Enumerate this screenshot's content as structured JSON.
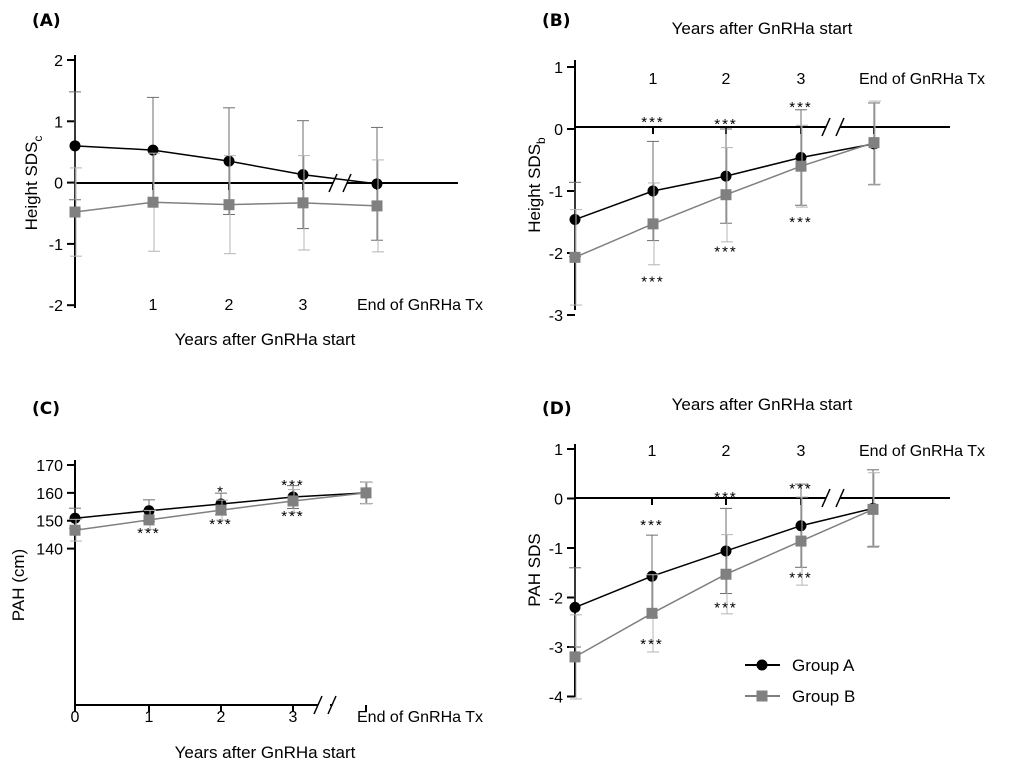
{
  "chart_data": [
    {
      "panel": "(A)",
      "type": "line",
      "ylabel": "Height SDS",
      "ylabel_sub": "c",
      "xlabel": "Years after GnRHa start",
      "xlabel_position": "bottom",
      "ylim": [
        -2,
        2
      ],
      "yticks": [
        -2,
        -1,
        0,
        1,
        2
      ],
      "x_ticks": [
        "1",
        "2",
        "3",
        "End of GnRHa Tx"
      ],
      "axis_break": true,
      "series": [
        {
          "group": "A",
          "x": [
            0,
            1,
            2,
            3,
            4
          ],
          "y": [
            0.6,
            0.53,
            0.35,
            0.13,
            -0.02
          ],
          "err": [
            0.88,
            0.86,
            0.87,
            0.88,
            0.92
          ]
        },
        {
          "group": "B",
          "x": [
            0,
            1,
            2,
            3,
            4
          ],
          "y": [
            -0.48,
            -0.32,
            -0.36,
            -0.33,
            -0.38
          ],
          "err": [
            0.72,
            0.8,
            0.8,
            0.77,
            0.75
          ]
        }
      ],
      "annotations": []
    },
    {
      "panel": "(B)",
      "type": "line",
      "ylabel": "Height SDS",
      "ylabel_sub": "b",
      "xlabel": "Years after GnRHa start",
      "xlabel_position": "top",
      "ylim": [
        -3,
        1
      ],
      "yticks": [
        -3,
        -2,
        -1,
        0,
        1
      ],
      "x_ticks": [
        "1",
        "2",
        "3",
        "End of GnRHa Tx"
      ],
      "axis_break": true,
      "series": [
        {
          "group": "A",
          "x": [
            0,
            1,
            2,
            3,
            4
          ],
          "y": [
            -1.46,
            -1.0,
            -0.76,
            -0.46,
            -0.24
          ],
          "err": [
            0.6,
            0.8,
            0.76,
            0.77,
            0.66
          ]
        },
        {
          "group": "B",
          "x": [
            0,
            1,
            2,
            3,
            4
          ],
          "y": [
            -2.07,
            -1.53,
            -1.06,
            -0.6,
            -0.22
          ],
          "err": [
            0.77,
            0.66,
            0.76,
            0.66,
            0.67
          ]
        }
      ],
      "annotations": [
        {
          "x": 1,
          "y": 0.13,
          "text": "***"
        },
        {
          "x": 2,
          "y": 0.1,
          "text": "***"
        },
        {
          "x": 3,
          "y": 0.37,
          "text": "***"
        },
        {
          "x": 1,
          "y": -2.44,
          "text": "***"
        },
        {
          "x": 2,
          "y": -1.96,
          "text": "***"
        },
        {
          "x": 3,
          "y": -1.48,
          "text": "***"
        }
      ]
    },
    {
      "panel": "(C)",
      "type": "line",
      "ylabel": "PAH (cm)",
      "xlabel": "Years after GnRHa start",
      "xlabel_position": "bottom",
      "ylim": [
        140,
        170
      ],
      "yticks": [
        140,
        150,
        160,
        170
      ],
      "x_ticks": [
        "0",
        "1",
        "2",
        "3",
        "End of GnRHa Tx"
      ],
      "axis_break": true,
      "series": [
        {
          "group": "A",
          "x": [
            0,
            1,
            2,
            3,
            4
          ],
          "y": [
            150.9,
            153.6,
            156.0,
            158.5,
            160.0
          ],
          "err": [
            3.6,
            3.9,
            3.9,
            4.1,
            3.9
          ]
        },
        {
          "group": "B",
          "x": [
            0,
            1,
            2,
            3,
            4
          ],
          "y": [
            146.6,
            150.3,
            153.8,
            157.1,
            160.0
          ],
          "err": [
            3.9,
            3.4,
            3.6,
            4.1,
            3.8
          ]
        }
      ],
      "annotations": [
        {
          "x": 2,
          "y": 160.8,
          "text": "*"
        },
        {
          "x": 3,
          "y": 163.2,
          "text": "***"
        },
        {
          "x": 1,
          "y": 145.9,
          "text": "***"
        },
        {
          "x": 2,
          "y": 149.1,
          "text": "***"
        },
        {
          "x": 3,
          "y": 152.0,
          "text": "***"
        }
      ]
    },
    {
      "panel": "(D)",
      "type": "line",
      "ylabel": "PAH SDS",
      "xlabel": "Years after GnRHa start",
      "xlabel_position": "top",
      "ylim": [
        -4,
        1
      ],
      "yticks": [
        -4,
        -3,
        -2,
        -1,
        0,
        1
      ],
      "x_ticks": [
        "1",
        "2",
        "3",
        "End of GnRHa Tx"
      ],
      "axis_break": true,
      "series": [
        {
          "group": "A",
          "x": [
            0,
            1,
            2,
            3,
            4
          ],
          "y": [
            -2.2,
            -1.57,
            -1.06,
            -0.55,
            -0.2
          ],
          "err": [
            0.8,
            0.83,
            0.86,
            0.84,
            0.78
          ]
        },
        {
          "group": "B",
          "x": [
            0,
            1,
            2,
            3,
            4
          ],
          "y": [
            -3.2,
            -2.32,
            -1.53,
            -0.86,
            -0.22
          ],
          "err": [
            0.85,
            0.78,
            0.8,
            0.89,
            0.74
          ]
        }
      ],
      "annotations": [
        {
          "x": 1,
          "y": -0.52,
          "text": "***"
        },
        {
          "x": 2,
          "y": 0.05,
          "text": "***"
        },
        {
          "x": 3,
          "y": 0.22,
          "text": "***"
        },
        {
          "x": 1,
          "y": -2.92,
          "text": "***"
        },
        {
          "x": 2,
          "y": -2.18,
          "text": "***"
        },
        {
          "x": 3,
          "y": -1.58,
          "text": "***"
        }
      ],
      "legend": {
        "position": "bottom-right",
        "entries": [
          {
            "label": "Group A",
            "group": "A"
          },
          {
            "label": "Group B",
            "group": "B"
          }
        ]
      }
    }
  ],
  "colors": {
    "group_a": "#000000",
    "group_b": "#808080",
    "error_a": "#6e6e6e",
    "error_b": "#b4b4b4"
  }
}
